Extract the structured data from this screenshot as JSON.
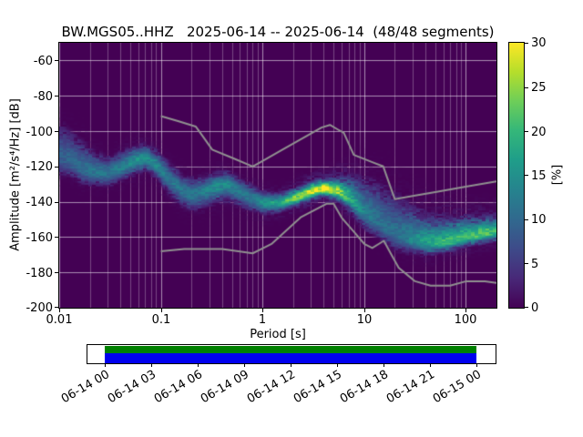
{
  "title": "BW.MGS05..HHZ   2025-06-14 -- 2025-06-14  (48/48 segments)",
  "axes": {
    "x_label": "Period [s]",
    "y_label": "Amplitude [m²/s⁴/Hz] [dB]",
    "x_tick_labels": [
      "0.01",
      "0.1",
      "1",
      "10",
      "100"
    ],
    "y_tick_labels": [
      "-60",
      "-80",
      "-100",
      "-120",
      "-140",
      "-160",
      "-180",
      "-200"
    ]
  },
  "colorbar": {
    "label": "[%]",
    "tick_labels": [
      "30",
      "25",
      "20",
      "15",
      "10",
      "5",
      "0"
    ]
  },
  "timeline": {
    "tick_labels": [
      "06-14 00",
      "06-14 03",
      "06-14 06",
      "06-14 09",
      "06-14 12",
      "06-14 15",
      "06-14 18",
      "06-14 21",
      "06-15 00"
    ],
    "colors": {
      "green": "#008000",
      "blue": "#0000ee"
    }
  },
  "chart_data": {
    "type": "heatmap",
    "title": "BW.MGS05..HHZ   2025-06-14 -- 2025-06-14  (48/48 segments)",
    "xlabel": "Period [s]",
    "ylabel": "Amplitude [m²/s⁴/Hz] [dB]",
    "colorbar_label": "[%]",
    "cmap": "viridis",
    "xscale": "log",
    "xlim": [
      0.01,
      200
    ],
    "ylim": [
      -200,
      -50
    ],
    "clim": [
      0,
      30
    ],
    "x_ticks": [
      0.01,
      0.1,
      1,
      10,
      100
    ],
    "y_ticks": [
      -200,
      -180,
      -160,
      -140,
      -120,
      -100,
      -80,
      -60
    ],
    "colorbar_ticks": [
      0,
      5,
      10,
      15,
      20,
      25,
      30
    ],
    "grid": true,
    "background_color": "#440154",
    "noise_model_color": "#909090",
    "ppsd_ridge": {
      "periods_s": [
        0.01,
        0.013,
        0.017,
        0.022,
        0.03,
        0.04,
        0.055,
        0.07,
        0.09,
        0.12,
        0.16,
        0.2,
        0.27,
        0.35,
        0.45,
        0.6,
        0.8,
        1.0,
        1.4,
        2.0,
        2.8,
        4.0,
        5.5,
        7.5,
        10,
        14,
        20,
        30,
        45,
        70,
        100,
        150,
        195
      ],
      "mode_db": [
        -114,
        -117,
        -121,
        -123,
        -124,
        -121,
        -117,
        -115,
        -119,
        -127,
        -133,
        -136,
        -134,
        -131,
        -130,
        -134,
        -138,
        -140.5,
        -141,
        -138.5,
        -135,
        -132.5,
        -134,
        -139,
        -146,
        -152,
        -158,
        -162,
        -163.5,
        -162.5,
        -160,
        -158,
        -157
      ],
      "peak_percent": [
        9,
        10,
        11,
        12,
        12,
        13,
        15,
        16,
        14,
        12,
        12,
        12,
        13,
        15,
        14,
        12,
        13,
        15,
        18,
        24,
        28,
        30,
        26,
        18,
        13,
        11,
        11,
        14,
        18,
        20,
        21,
        22,
        20
      ],
      "spread_down_db": [
        6,
        5,
        5,
        4,
        4,
        4,
        4,
        4,
        4,
        5,
        5,
        5,
        5,
        5,
        5,
        5,
        4,
        3.5,
        3,
        2.5,
        2.5,
        2.5,
        3,
        4,
        5,
        5,
        5,
        4,
        3.5,
        3,
        3,
        3,
        3
      ],
      "spread_up_db": [
        10,
        9,
        8,
        6,
        5,
        5,
        4.5,
        4,
        4.5,
        5,
        5,
        5,
        4.5,
        4,
        4,
        4,
        4,
        3.5,
        3,
        3,
        3,
        3,
        4,
        7,
        10,
        12,
        12,
        10,
        8,
        7,
        6,
        5,
        5
      ]
    },
    "noise_models": {
      "nhnm": [
        [
          0.1,
          -91.5
        ],
        [
          0.15,
          -94.5
        ],
        [
          0.22,
          -97.4
        ],
        [
          0.26,
          -103.2
        ],
        [
          0.32,
          -110.5
        ],
        [
          0.5,
          -115.1
        ],
        [
          0.8,
          -120.0
        ],
        [
          1.0,
          -116.9
        ],
        [
          1.5,
          -111.1
        ],
        [
          2.2,
          -105.7
        ],
        [
          3.0,
          -101.3
        ],
        [
          3.8,
          -98.0
        ],
        [
          4.6,
          -96.5
        ],
        [
          5.5,
          -99.1
        ],
        [
          6.3,
          -101.0
        ],
        [
          7.0,
          -106.8
        ],
        [
          7.9,
          -113.5
        ],
        [
          10,
          -115.8
        ],
        [
          12,
          -117.6
        ],
        [
          15.4,
          -120.0
        ],
        [
          18,
          -131.1
        ],
        [
          20,
          -138.5
        ],
        [
          30,
          -136.7
        ],
        [
          50,
          -134.5
        ],
        [
          100,
          -131.5
        ],
        [
          200,
          -128.5
        ]
      ],
      "nlnm": [
        [
          0.1,
          -168.0
        ],
        [
          0.17,
          -166.7
        ],
        [
          0.4,
          -166.7
        ],
        [
          0.6,
          -168.2
        ],
        [
          0.8,
          -169.2
        ],
        [
          1.0,
          -166.4
        ],
        [
          1.24,
          -163.7
        ],
        [
          1.7,
          -156.5
        ],
        [
          2.4,
          -148.6
        ],
        [
          3.2,
          -144.9
        ],
        [
          4.3,
          -141.1
        ],
        [
          5.0,
          -141.1
        ],
        [
          5.5,
          -145.2
        ],
        [
          6.0,
          -149.0
        ],
        [
          8.0,
          -157.3
        ],
        [
          10,
          -163.8
        ],
        [
          12,
          -166.2
        ],
        [
          14,
          -163.8
        ],
        [
          15.6,
          -162.1
        ],
        [
          19,
          -171.1
        ],
        [
          21.9,
          -177.5
        ],
        [
          26,
          -181.0
        ],
        [
          31.6,
          -185.0
        ],
        [
          45,
          -187.5
        ],
        [
          70,
          -187.5
        ],
        [
          101,
          -185.0
        ],
        [
          154,
          -185.0
        ],
        [
          200,
          -185.9
        ]
      ]
    },
    "coverage_timeline": {
      "tick_labels": [
        "06-14 00",
        "06-14 03",
        "06-14 06",
        "06-14 09",
        "06-14 12",
        "06-14 15",
        "06-14 18",
        "06-14 21",
        "06-15 00"
      ],
      "segments": "48/48"
    }
  }
}
